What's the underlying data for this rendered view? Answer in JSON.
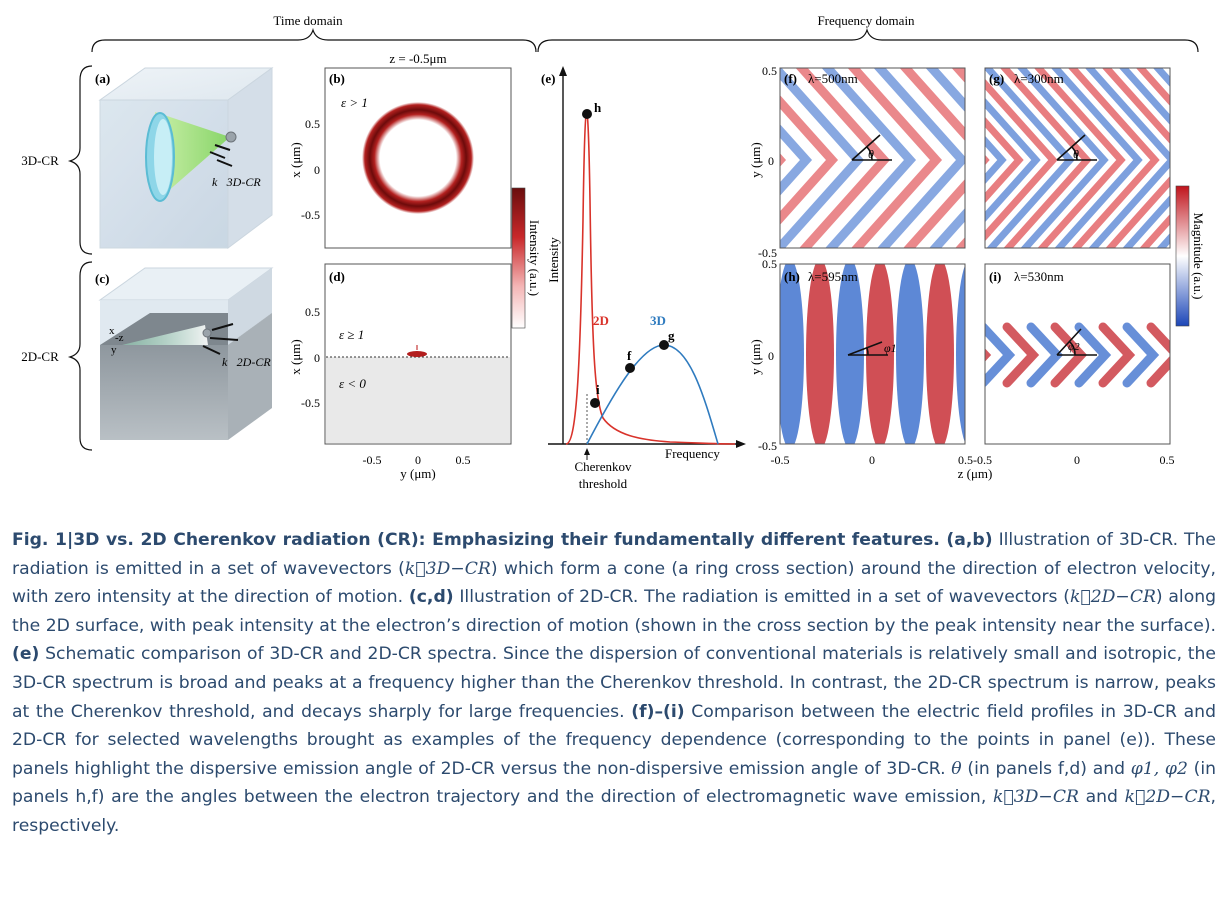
{
  "figure": {
    "time_domain": "Time domain",
    "frequency_domain": "Frequency domain",
    "row_3d": "3D-CR",
    "row_2d": "2D-CR",
    "panel_a": "(a)",
    "panel_b": "(b)",
    "panel_c": "(c)",
    "panel_d": "(d)",
    "panel_e": "(e)",
    "panel_f": "(f)",
    "panel_g": "(g)",
    "panel_h": "(h)",
    "panel_i": "(i)",
    "k3d_label": "k⃗3D-CR",
    "k2d_label": "k⃗2D-CR",
    "axes_x": "x",
    "axes_z": "-z",
    "axes_y": "y",
    "z_title": "z = -0.5μm",
    "eps_gt": "ε > 1",
    "eps_ge": "ε ≥ 1",
    "eps_lt": "ε < 0",
    "x_um": "x (μm)",
    "y_um": "y (μm)",
    "z_um": "z (μm)",
    "intensity_au": "Intensity (a.u.)",
    "magnitude_au": "Magnitude (a.u.)",
    "tick_05": "0.5",
    "tick_0": "0",
    "tick_m05": "-0.5",
    "tick_05m05": "0.5-0.5",
    "lambda_f": "λ=500nm",
    "lambda_g": "λ=300nm",
    "lambda_h": "λ=595nm",
    "lambda_i": "λ=530nm",
    "theta": "θ",
    "phi1": "φ1",
    "phi2": "φ2",
    "spectrum": {
      "ylabel": "Intensity",
      "xlabel": "Frequency",
      "threshold_line1": "Cherenkov",
      "threshold_line2": "threshold",
      "series_2d": "2D",
      "series_3d": "3D",
      "color_2d": "#d9332b",
      "color_3d": "#2f7bbf",
      "points": [
        "h",
        "f",
        "g",
        "i"
      ]
    }
  },
  "caption": {
    "bold_title": "Fig. 1|3D vs. 2D Cherenkov radiation (CR): Emphasizing their fundamentally different features. (a,b)",
    "t1": " Illustration of 3D-CR. The radiation is emitted in a set of wavevectors (",
    "k3d": "k⃗3D−CR",
    "t2": ") which form a cone (a ring cross section) around the direction of electron velocity, with zero intensity at the direction of motion. ",
    "bold_cd": "(c,d)",
    "t3": " Illustration of 2D-CR. The radiation is emitted in a set of wavevectors (",
    "k2d": "k⃗2D−CR",
    "t4": ") along the 2D surface, with peak intensity at the electron’s direction of motion (shown in the cross section by the peak intensity near the surface). ",
    "bold_e": "(e)",
    "t5": " Schematic comparison of 3D-CR and 2D-CR spectra. Since the dispersion of conventional materials is relatively small and isotropic, the 3D-CR spectrum is broad and peaks at a frequency higher than the Cherenkov threshold. In contrast, the 2D-CR spectrum is narrow, peaks at the Cherenkov threshold, and decays sharply for large frequencies. ",
    "bold_fi": "(f)–(i)",
    "t6": " Comparison between the electric field profiles in 3D-CR and 2D-CR for selected wavelengths brought as examples of the frequency dependence (corresponding to the points in panel (e)). These panels highlight the dispersive emission angle of 2D-CR versus the non-dispersive emission angle of 3D-CR. ",
    "theta": "θ",
    "t7": " (in panels f,d) and ",
    "phis": "φ1, φ2",
    "t8": " (in panels h,f) are the angles between the electron trajectory and the direction of electromagnetic wave emission, ",
    "k3d_b": "k⃗3D−CR",
    "t9": " and ",
    "k2d_b": "k⃗2D−CR",
    "t10": ", respectively."
  }
}
